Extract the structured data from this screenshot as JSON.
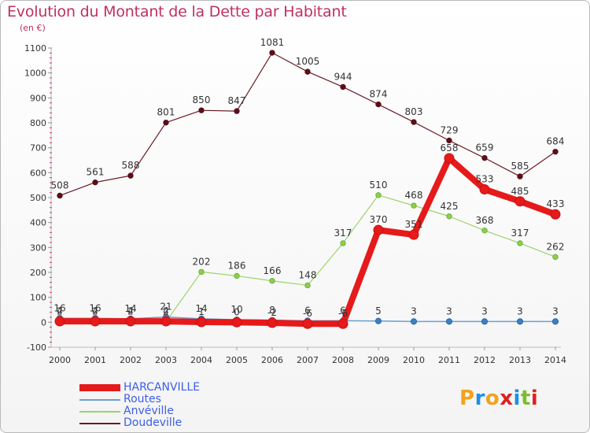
{
  "title": "Evolution du Montant de la Dette par Habitant",
  "unit": "(en €)",
  "logo": [
    "P",
    "r",
    "o",
    "x",
    "i",
    "t",
    "i"
  ],
  "logo_colors": [
    "#f2a21c",
    "#1f8fe0",
    "#f2a21c",
    "#e02020",
    "#1f8fe0",
    "#7cbd2b",
    "#e02020"
  ],
  "chart_data": {
    "type": "line",
    "x": [
      "2000",
      "2001",
      "2002",
      "2003",
      "2004",
      "2005",
      "2006",
      "2007",
      "2008",
      "2009",
      "2010",
      "2011",
      "2012",
      "2013",
      "2014"
    ],
    "ylim": [
      -100,
      1100
    ],
    "yticks": [
      -100,
      0,
      100,
      200,
      300,
      400,
      500,
      600,
      700,
      800,
      900,
      1000,
      1100
    ],
    "grid": false,
    "legend_position": "bottom-left",
    "series": [
      {
        "name": "Doudeville",
        "color": "#6b1a22",
        "values": [
          508,
          561,
          588,
          801,
          850,
          847,
          1081,
          1005,
          944,
          874,
          803,
          729,
          659,
          585,
          684
        ],
        "labels": [
          "508",
          "561",
          "588",
          "801",
          "850",
          "847",
          "1081",
          "1005",
          "944",
          "874",
          "803",
          "729",
          "659",
          "585",
          "684"
        ]
      },
      {
        "name": "Anvéville",
        "color": "#9bd36a",
        "values": [
          2,
          2,
          2,
          2,
          202,
          186,
          166,
          148,
          317,
          510,
          468,
          425,
          368,
          317,
          262
        ],
        "labels": [
          "2",
          "2",
          "2",
          "2",
          "202",
          "186",
          "166",
          "148",
          "317",
          "510",
          "468",
          "425",
          "368",
          "317",
          "262"
        ]
      },
      {
        "name": "Routes",
        "color": "#6a9fd2",
        "values": [
          16,
          16,
          14,
          21,
          14,
          10,
          8,
          6,
          6,
          5,
          3,
          3,
          3,
          3,
          3
        ],
        "labels": [
          "16",
          "16",
          "14",
          "21",
          "14",
          "10",
          "8",
          "6",
          "6",
          "5",
          "3",
          "3",
          "3",
          "3",
          "3"
        ]
      },
      {
        "name": "HARCANVILLE",
        "color": "#e61a1a",
        "values": [
          4,
          4,
          4,
          4,
          1,
          0,
          -2,
          -6,
          -6,
          370,
          351,
          658,
          533,
          485,
          433
        ],
        "labels": [
          "4",
          "4",
          "4",
          "4",
          "1",
          "0",
          "-2",
          "-6",
          "-6",
          "370",
          "351",
          "658",
          "533",
          "485",
          "433"
        ]
      }
    ]
  }
}
